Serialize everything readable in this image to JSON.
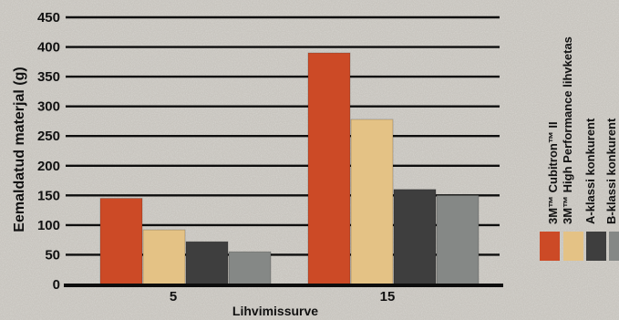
{
  "chart_data": {
    "type": "bar",
    "ylabel": "Eemaldatud materjal (g)",
    "xlabel": "Lihvimissurve",
    "categories": [
      "5",
      "15"
    ],
    "yticks": [
      0,
      50,
      100,
      150,
      200,
      250,
      300,
      350,
      400,
      450
    ],
    "ylim": [
      0,
      450
    ],
    "grid": true,
    "legend_position": "right",
    "series": [
      {
        "name": "3M™ Cubitron™ II",
        "values": [
          145,
          390
        ],
        "color": "#cc4a26"
      },
      {
        "name": "3M™ High Performance lihvketas",
        "values": [
          92,
          278
        ],
        "color": "#e4c285"
      },
      {
        "name": "A-klassi konkurent",
        "values": [
          72,
          160
        ],
        "color": "#3e3e3e"
      },
      {
        "name": "B-klassi konkurent",
        "values": [
          55,
          150
        ],
        "color": "#858886"
      }
    ]
  }
}
